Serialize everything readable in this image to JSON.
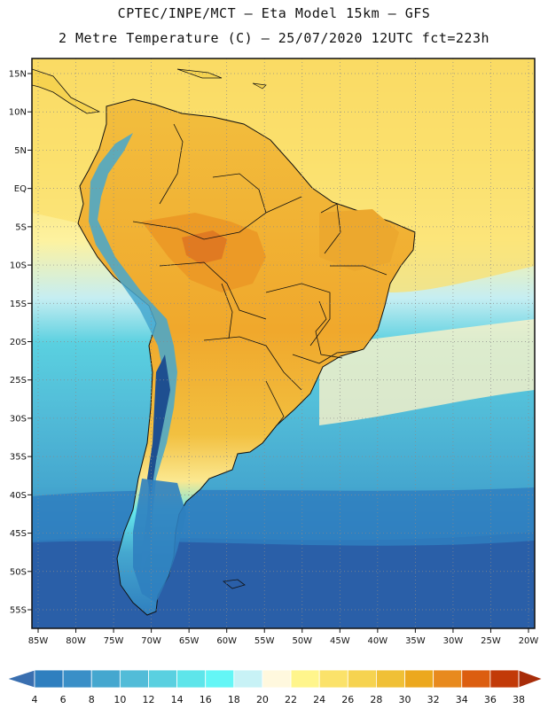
{
  "title_line1": "CPTEC/INPE/MCT –  Eta Model 15km – GFS",
  "title_line2": "2 Metre Temperature (C) – 25/07/2020 12UTC fct=223h",
  "lat_labels": [
    "15N",
    "10N",
    "5N",
    "EQ",
    "5S",
    "10S",
    "15S",
    "20S",
    "25S",
    "30S",
    "35S",
    "40S",
    "45S",
    "50S",
    "55S"
  ],
  "lat_values": [
    15,
    10,
    5,
    0,
    -5,
    -10,
    -15,
    -20,
    -25,
    -30,
    -35,
    -40,
    -45,
    -50,
    -55
  ],
  "lon_labels": [
    "85W",
    "80W",
    "75W",
    "70W",
    "65W",
    "60W",
    "55W",
    "50W",
    "45W",
    "40W",
    "35W",
    "30W",
    "25W",
    "20W"
  ],
  "lon_values": [
    -85,
    -80,
    -75,
    -70,
    -65,
    -60,
    -55,
    -50,
    -45,
    -40,
    -35,
    -30,
    -25,
    -20
  ],
  "colorbar": {
    "labels": [
      "4",
      "6",
      "8",
      "10",
      "12",
      "14",
      "16",
      "18",
      "20",
      "22",
      "24",
      "26",
      "28",
      "30",
      "32",
      "34",
      "36",
      "38"
    ],
    "colors": [
      "#3a6fb0",
      "#2f7fbf",
      "#3a8fc7",
      "#45a7cf",
      "#52bcd8",
      "#5ad0e0",
      "#5ee5ea",
      "#64f6f6",
      "#c8f2f6",
      "#fff8de",
      "#fff58c",
      "#fbe26a",
      "#f6d350",
      "#f0c036",
      "#eca81e",
      "#e88a1e",
      "#dc5e10",
      "#c23a08",
      "#a82d0a"
    ]
  },
  "colors": {
    "tropical_ocean": "#fbe06e",
    "hot_land": "#f0b036",
    "hottest_land": "#e07a22",
    "mid_ocean": "#5ad0e0",
    "cold_ocean": "#2f7fbf",
    "coldest_ocean": "#2a60a8",
    "andes": "#1e5a9e"
  }
}
